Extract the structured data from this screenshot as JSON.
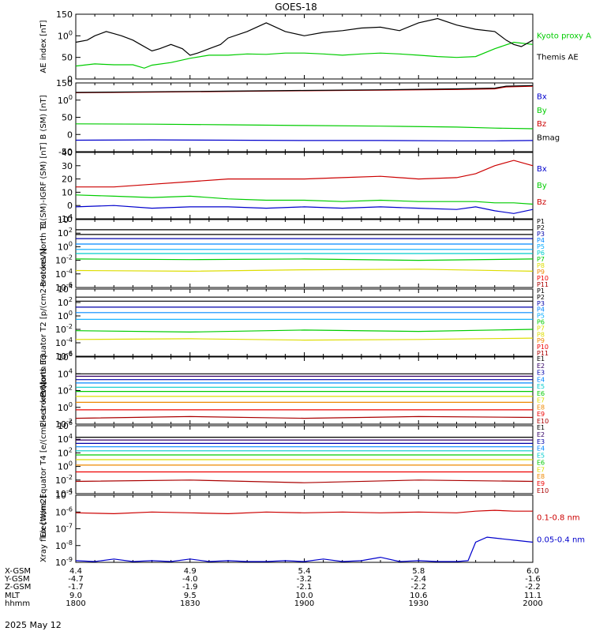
{
  "title": "GOES-18",
  "date_label": "2025 May 12",
  "colors": {
    "black": "#000000",
    "green": "#00cc00",
    "red": "#cc0000",
    "blue": "#0000cc",
    "P": [
      "#000000",
      "#000000",
      "#0000aa",
      "#0088ff",
      "#00aaff",
      "#00cccc",
      "#00cc00",
      "#dddd00",
      "#ee8800",
      "#ee0000",
      "#aa0000"
    ],
    "E": [
      "#000000",
      "#330066",
      "#0000aa",
      "#0088ff",
      "#00cccc",
      "#00cc00",
      "#dddd00",
      "#ee8800",
      "#ee0000",
      "#aa0000"
    ]
  },
  "ephemeris": {
    "labels": [
      "X-GSM",
      "Y-GSM",
      "Z-GSM",
      "MLT",
      "hhmm"
    ],
    "columns": [
      [
        "4.4",
        "-4.7",
        "-1.7",
        "9.0",
        "1800"
      ],
      [
        "4.9",
        "-4.0",
        "-1.9",
        "9.5",
        "1830"
      ],
      [
        "5.4",
        "-3.2",
        "-2.1",
        "10.0",
        "1900"
      ],
      [
        "5.8",
        "-2.4",
        "-2.2",
        "10.6",
        "1930"
      ],
      [
        "6.0",
        "-1.6",
        "-2.2",
        "11.1",
        "2000"
      ]
    ]
  },
  "chart_data": [
    {
      "type": "line",
      "ylabel": "AE index [nT]",
      "ylim": [
        0,
        150
      ],
      "yticks": [
        "0",
        "50",
        "100",
        "150"
      ],
      "series": [
        {
          "name": "Kyoto proxy AE",
          "color": "green",
          "x": [
            0,
            5,
            10,
            15,
            18,
            20,
            25,
            30,
            35,
            40,
            45,
            50,
            55,
            60,
            65,
            70,
            75,
            80,
            85,
            90,
            95,
            100,
            105,
            110,
            115,
            120
          ],
          "values": [
            30,
            35,
            33,
            33,
            25,
            32,
            38,
            48,
            55,
            55,
            58,
            57,
            60,
            60,
            58,
            55,
            58,
            60,
            58,
            55,
            52,
            50,
            52,
            70,
            85,
            80
          ]
        },
        {
          "name": "Themis AE",
          "color": "black",
          "x": [
            0,
            3,
            5,
            8,
            10,
            12,
            15,
            17,
            20,
            22,
            25,
            28,
            30,
            32,
            35,
            38,
            40,
            45,
            50,
            55,
            60,
            65,
            70,
            75,
            80,
            85,
            90,
            95,
            100,
            105,
            110,
            113,
            115,
            117,
            120
          ],
          "values": [
            85,
            90,
            100,
            110,
            105,
            100,
            90,
            80,
            65,
            70,
            80,
            70,
            55,
            60,
            70,
            80,
            95,
            110,
            130,
            110,
            100,
            108,
            112,
            118,
            120,
            112,
            130,
            140,
            125,
            115,
            110,
            90,
            80,
            75,
            90
          ]
        }
      ],
      "legend": [
        "Kyoto proxy AE",
        "Themis AE"
      ]
    },
    {
      "type": "line",
      "ylabel": "B (SM) [nT]",
      "ylim": [
        -60,
        150
      ],
      "yticks": [
        "-50",
        "0",
        "50",
        "100",
        "150"
      ],
      "series": [
        {
          "name": "Bx",
          "color": "blue",
          "x": [
            0,
            20,
            40,
            60,
            80,
            100,
            110,
            120
          ],
          "values": [
            -25,
            -24,
            -25,
            -26,
            -26,
            -27,
            -27,
            -26
          ]
        },
        {
          "name": "By",
          "color": "green",
          "x": [
            0,
            20,
            40,
            60,
            80,
            100,
            110,
            120
          ],
          "values": [
            25,
            24,
            22,
            20,
            18,
            15,
            12,
            10
          ]
        },
        {
          "name": "Bz",
          "color": "red",
          "x": [
            0,
            20,
            40,
            60,
            80,
            100,
            110,
            113,
            120
          ],
          "values": [
            120,
            122,
            124,
            126,
            128,
            130,
            132,
            138,
            140
          ]
        },
        {
          "name": "Bmag",
          "color": "black",
          "x": [
            0,
            20,
            40,
            60,
            80,
            100,
            110,
            113,
            120
          ],
          "values": [
            121,
            123,
            125,
            127,
            129,
            132,
            134,
            140,
            142
          ]
        }
      ],
      "legend": [
        "Bx",
        "By",
        "Bz",
        "Bmag"
      ]
    },
    {
      "type": "line",
      "ylabel": "B (SM)-IGRF (SM) [nT]",
      "ylim": [
        -10,
        40
      ],
      "yticks": [
        "-10",
        "0",
        "10",
        "20",
        "30",
        "40"
      ],
      "series": [
        {
          "name": "Bx",
          "color": "blue",
          "x": [
            0,
            10,
            20,
            30,
            40,
            50,
            60,
            70,
            80,
            90,
            100,
            105,
            110,
            115,
            120
          ],
          "values": [
            -1,
            0,
            -2,
            -1,
            -1,
            -2,
            -1,
            -2,
            -1,
            -2,
            -3,
            -1,
            -4,
            -6,
            -3
          ]
        },
        {
          "name": "By",
          "color": "green",
          "x": [
            0,
            10,
            20,
            30,
            40,
            50,
            60,
            70,
            80,
            90,
            100,
            105,
            110,
            115,
            120
          ],
          "values": [
            8,
            7,
            6,
            7,
            5,
            4,
            4,
            3,
            4,
            3,
            3,
            3,
            2,
            2,
            1
          ]
        },
        {
          "name": "Bz",
          "color": "red",
          "x": [
            0,
            10,
            20,
            30,
            40,
            50,
            60,
            70,
            80,
            90,
            100,
            105,
            110,
            115,
            120
          ],
          "values": [
            14,
            14,
            16,
            18,
            20,
            20,
            20,
            21,
            22,
            20,
            21,
            24,
            30,
            34,
            30
          ]
        }
      ],
      "legend": [
        "Bx",
        "By",
        "Bz"
      ]
    },
    {
      "type": "line",
      "ylabel": "Protons North T1",
      "yscale": "log",
      "ylim": [
        -6,
        4
      ],
      "yticks": [
        "10-6",
        "10-4",
        "10-2",
        "100",
        "102",
        "104"
      ],
      "series": [
        {
          "name": "P1",
          "color": "P0",
          "values": [
            2.5,
            2.5,
            2.5,
            2.5,
            2.5
          ]
        },
        {
          "name": "P2",
          "color": "P1",
          "values": [
            1.8,
            1.8,
            1.8,
            1.8,
            1.8
          ]
        },
        {
          "name": "P3",
          "color": "P2",
          "values": [
            1.2,
            1.2,
            1.2,
            1.2,
            1.2
          ]
        },
        {
          "name": "P4",
          "color": "P3",
          "values": [
            0.4,
            0.4,
            0.4,
            0.4,
            0.4
          ]
        },
        {
          "name": "P5",
          "color": "P4",
          "values": [
            -0.4,
            -0.4,
            -0.4,
            -0.4,
            -0.4
          ]
        },
        {
          "name": "P6",
          "color": "P5",
          "values": [
            -1.0,
            -1.0,
            -1.0,
            -1.0,
            -1.0
          ]
        },
        {
          "name": "P7",
          "color": "P6",
          "values": [
            -1.8,
            -1.9,
            -1.8,
            -2.0,
            -1.8
          ]
        },
        {
          "name": "P8",
          "color": "P7",
          "values": [
            -3.5,
            -3.6,
            -3.4,
            -3.3,
            -3.6
          ]
        }
      ],
      "legend": [
        "P1",
        "P2",
        "P3",
        "P4",
        "P5",
        "P6",
        "P7",
        "P8",
        "P9",
        "P10",
        "P11"
      ]
    },
    {
      "type": "line",
      "ylabel": "Protons Equator T2 [p/(cm2-s-sr-keV)]",
      "yscale": "log",
      "ylim": [
        -6,
        4
      ],
      "yticks": [
        "10-6",
        "10-4",
        "10-2",
        "100",
        "102",
        "104"
      ],
      "series": [
        {
          "name": "P1",
          "color": "P0",
          "values": [
            2.8,
            2.8,
            2.8,
            2.8,
            2.8
          ]
        },
        {
          "name": "P2",
          "color": "P1",
          "values": [
            2.2,
            2.2,
            2.2,
            2.2,
            2.2
          ]
        },
        {
          "name": "P3",
          "color": "P2",
          "values": [
            1.3,
            1.3,
            1.3,
            1.3,
            1.3
          ]
        },
        {
          "name": "P4",
          "color": "P3",
          "values": [
            0.5,
            0.5,
            0.5,
            0.5,
            0.5
          ]
        },
        {
          "name": "P5",
          "color": "P4",
          "values": [
            -0.5,
            -0.5,
            -0.5,
            -0.5,
            -0.5
          ]
        },
        {
          "name": "P6",
          "color": "P6",
          "values": [
            -2.2,
            -2.4,
            -2.1,
            -2.3,
            -2.0
          ]
        },
        {
          "name": "P7",
          "color": "P7",
          "values": [
            -3.5,
            -3.4,
            -3.6,
            -3.5,
            -3.3
          ]
        }
      ],
      "legend": [
        "P1",
        "P2",
        "P3",
        "P4",
        "P5",
        "P6",
        "P7",
        "P8",
        "P9",
        "P10",
        "P11"
      ]
    },
    {
      "type": "line",
      "ylabel": "Electrons North T3",
      "yscale": "log",
      "ylim": [
        -2,
        6
      ],
      "yticks": [
        "10-2",
        "100",
        "102",
        "104",
        "106"
      ],
      "series": [
        {
          "name": "E1",
          "color": "E0",
          "values": [
            4.0,
            4.0,
            4.0,
            4.0,
            4.0
          ]
        },
        {
          "name": "E2",
          "color": "E1",
          "values": [
            3.7,
            3.7,
            3.7,
            3.7,
            3.7
          ]
        },
        {
          "name": "E3",
          "color": "E2",
          "values": [
            3.3,
            3.3,
            3.3,
            3.3,
            3.3
          ]
        },
        {
          "name": "E4",
          "color": "E3",
          "values": [
            2.9,
            2.9,
            2.9,
            2.9,
            2.9
          ]
        },
        {
          "name": "E5",
          "color": "E4",
          "values": [
            2.4,
            2.4,
            2.4,
            2.4,
            2.4
          ]
        },
        {
          "name": "E6",
          "color": "E5",
          "values": [
            1.9,
            1.9,
            1.9,
            1.9,
            1.9
          ]
        },
        {
          "name": "E7",
          "color": "E6",
          "values": [
            1.3,
            1.3,
            1.3,
            1.3,
            1.3
          ]
        },
        {
          "name": "E8",
          "color": "E7",
          "values": [
            0.6,
            0.6,
            0.6,
            0.6,
            0.6
          ]
        },
        {
          "name": "E9",
          "color": "E8",
          "values": [
            -0.3,
            -0.3,
            -0.3,
            -0.3,
            -0.3
          ]
        },
        {
          "name": "E10",
          "color": "E9",
          "values": [
            -1.3,
            -1.1,
            -1.3,
            -1.1,
            -1.2
          ]
        }
      ],
      "legend": [
        "E1",
        "E2",
        "E3",
        "E4",
        "E5",
        "E6",
        "E7",
        "E8",
        "E9",
        "E10"
      ]
    },
    {
      "type": "line",
      "ylabel": "Electrons Equator T4 [e/(cm2-s-sr-keV)]",
      "yscale": "log",
      "ylim": [
        -4,
        6
      ],
      "yticks": [
        "10-4",
        "10-2",
        "100",
        "102",
        "104",
        "106"
      ],
      "series": [
        {
          "name": "E1",
          "color": "E0",
          "values": [
            4.3,
            4.3,
            4.3,
            4.3,
            4.3
          ]
        },
        {
          "name": "E2",
          "color": "E1",
          "values": [
            3.9,
            3.9,
            3.9,
            3.9,
            3.9
          ]
        },
        {
          "name": "E3",
          "color": "E2",
          "values": [
            3.4,
            3.4,
            3.4,
            3.4,
            3.4
          ]
        },
        {
          "name": "E4",
          "color": "E3",
          "values": [
            2.9,
            2.9,
            2.9,
            2.9,
            2.9
          ]
        },
        {
          "name": "E5",
          "color": "E4",
          "values": [
            2.3,
            2.3,
            2.3,
            2.3,
            2.3
          ]
        },
        {
          "name": "E6",
          "color": "E5",
          "values": [
            1.7,
            1.7,
            1.7,
            1.7,
            1.7
          ]
        },
        {
          "name": "E7",
          "color": "E6",
          "values": [
            1.0,
            1.0,
            1.0,
            1.0,
            1.0
          ]
        },
        {
          "name": "E8",
          "color": "E7",
          "values": [
            0.2,
            0.2,
            0.2,
            0.2,
            0.2
          ]
        },
        {
          "name": "E9",
          "color": "E8",
          "values": [
            -0.8,
            -0.8,
            -0.8,
            -0.8,
            -0.8
          ]
        },
        {
          "name": "E10",
          "color": "E9",
          "values": [
            -2.2,
            -2.0,
            -2.4,
            -2.0,
            -2.2
          ]
        }
      ],
      "legend": [
        "E1",
        "E2",
        "E3",
        "E4",
        "E5",
        "E6",
        "E7",
        "E8",
        "E9",
        "E10"
      ]
    },
    {
      "type": "line",
      "ylabel": "Xray flux [W/m2]",
      "yscale": "log",
      "ylim": [
        -9,
        -5
      ],
      "yticks": [
        "10-9",
        "10-8",
        "10-7",
        "10-6",
        "10-5"
      ],
      "series": [
        {
          "name": "0.1-0.8 nm",
          "color": "red",
          "x": [
            0,
            10,
            20,
            30,
            40,
            50,
            60,
            70,
            80,
            90,
            100,
            105,
            110,
            115,
            120
          ],
          "values": [
            -6.05,
            -6.1,
            -6.0,
            -6.05,
            -6.1,
            -6.0,
            -6.05,
            -6.0,
            -6.05,
            -6.0,
            -6.05,
            -5.95,
            -5.9,
            -5.95,
            -5.95
          ]
        },
        {
          "name": "0.05-0.4 nm",
          "color": "blue",
          "x": [
            0,
            5,
            10,
            15,
            20,
            25,
            30,
            35,
            40,
            45,
            50,
            55,
            60,
            65,
            70,
            75,
            80,
            85,
            90,
            95,
            100,
            103,
            105,
            108,
            112,
            116,
            120
          ],
          "values": [
            -8.9,
            -9.0,
            -8.8,
            -9.0,
            -8.9,
            -9.0,
            -8.8,
            -9.0,
            -8.9,
            -9.0,
            -9.0,
            -8.9,
            -9.0,
            -8.8,
            -9.0,
            -8.9,
            -8.7,
            -9.0,
            -8.9,
            -9.0,
            -9.0,
            -8.9,
            -7.8,
            -7.5,
            -7.6,
            -7.7,
            -7.8
          ]
        }
      ],
      "legend": [
        "0.1-0.8 nm",
        "0.05-0.4 nm"
      ]
    }
  ]
}
